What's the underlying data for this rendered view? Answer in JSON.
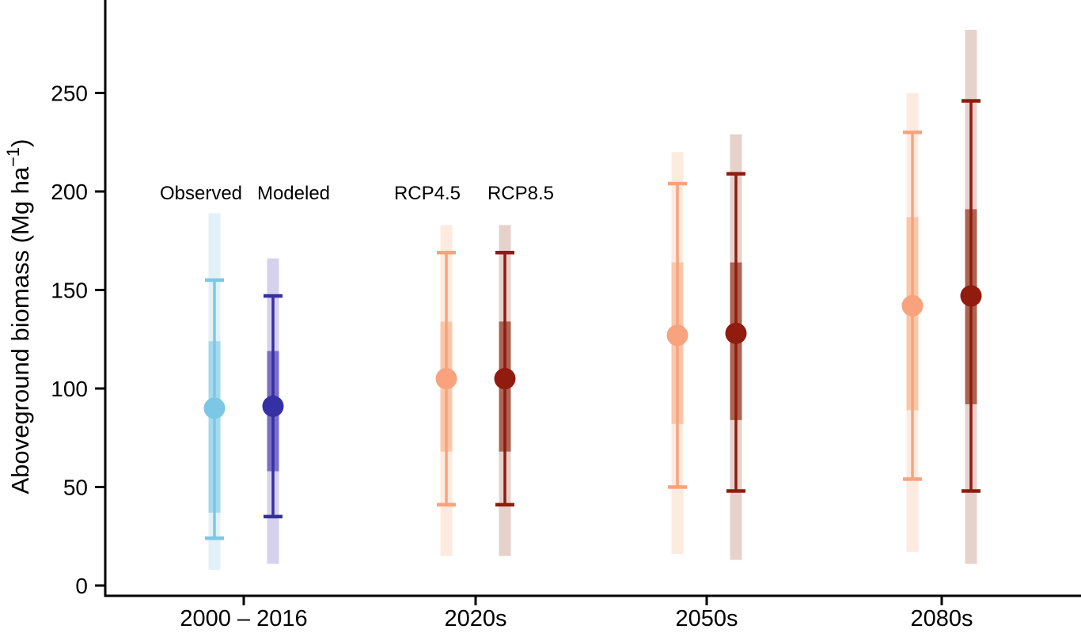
{
  "chart_data": {
    "type": "dot-interval",
    "title": "",
    "ylabel": "Aboveground biomass (Mg ha⁻¹)",
    "ylabel_parts": {
      "main": "Aboveground biomass (Mg ha",
      "sup": "−1",
      "close": ")"
    },
    "xlabel": "",
    "y_ticks": [
      0,
      50,
      100,
      150,
      200,
      250
    ],
    "ylim": [
      0,
      297
    ],
    "grid": "off",
    "legend_position": "inside-top-left",
    "legend": [
      {
        "label": "Observed",
        "color": "#8DC9E8"
      },
      {
        "label": "Modeled",
        "color": "#221D9C"
      },
      {
        "label": "RCP4.5",
        "color": "#F8A37D"
      },
      {
        "label": "RCP8.5",
        "color": "#9A1D10"
      }
    ],
    "palette": {
      "Observed": {
        "main": "#7CC7E6",
        "band": "#A5DAED",
        "pale": "#E2F1F8"
      },
      "Modeled": {
        "main": "#3530A3",
        "band": "#7A6FC5",
        "pale": "#D6D1ED"
      },
      "RCP4.5": {
        "main": "#F8A37D",
        "band": "#FBC7A8",
        "pale": "#FDEBE0"
      },
      "RCP8.5": {
        "main": "#911B0E",
        "band": "#AC6453",
        "pale": "#E6D1CB"
      }
    },
    "interval_definitions": {
      "mean": "central dot",
      "band50": "thick inner band",
      "ci": "whisker line with end caps",
      "range": "palest full-length band"
    },
    "groups": [
      {
        "label": "2000 – 2016",
        "series": [
          {
            "name": "Observed",
            "mean": 90,
            "band50": [
              37,
              124
            ],
            "ci": [
              24,
              155
            ],
            "range": [
              8,
              189
            ]
          },
          {
            "name": "Modeled",
            "mean": 91,
            "band50": [
              58,
              119
            ],
            "ci": [
              35,
              147
            ],
            "range": [
              11,
              166
            ]
          }
        ]
      },
      {
        "label": "2020s",
        "series": [
          {
            "name": "RCP4.5",
            "mean": 105,
            "band50": [
              68,
              134
            ],
            "ci": [
              41,
              169
            ],
            "range": [
              15,
              183
            ]
          },
          {
            "name": "RCP8.5",
            "mean": 105,
            "band50": [
              68,
              134
            ],
            "ci": [
              41,
              169
            ],
            "range": [
              15,
              183
            ]
          }
        ]
      },
      {
        "label": "2050s",
        "series": [
          {
            "name": "RCP4.5",
            "mean": 127,
            "band50": [
              82,
              164
            ],
            "ci": [
              50,
              204
            ],
            "range": [
              16,
              220
            ]
          },
          {
            "name": "RCP8.5",
            "mean": 128,
            "band50": [
              84,
              164
            ],
            "ci": [
              48,
              209
            ],
            "range": [
              13,
              229
            ]
          }
        ]
      },
      {
        "label": "2080s",
        "series": [
          {
            "name": "RCP4.5",
            "mean": 142,
            "band50": [
              89,
              187
            ],
            "ci": [
              54,
              230
            ],
            "range": [
              17,
              250
            ]
          },
          {
            "name": "RCP8.5",
            "mean": 147,
            "band50": [
              92,
              191
            ],
            "ci": [
              48,
              246
            ],
            "range": [
              11,
              282
            ]
          }
        ]
      }
    ]
  }
}
